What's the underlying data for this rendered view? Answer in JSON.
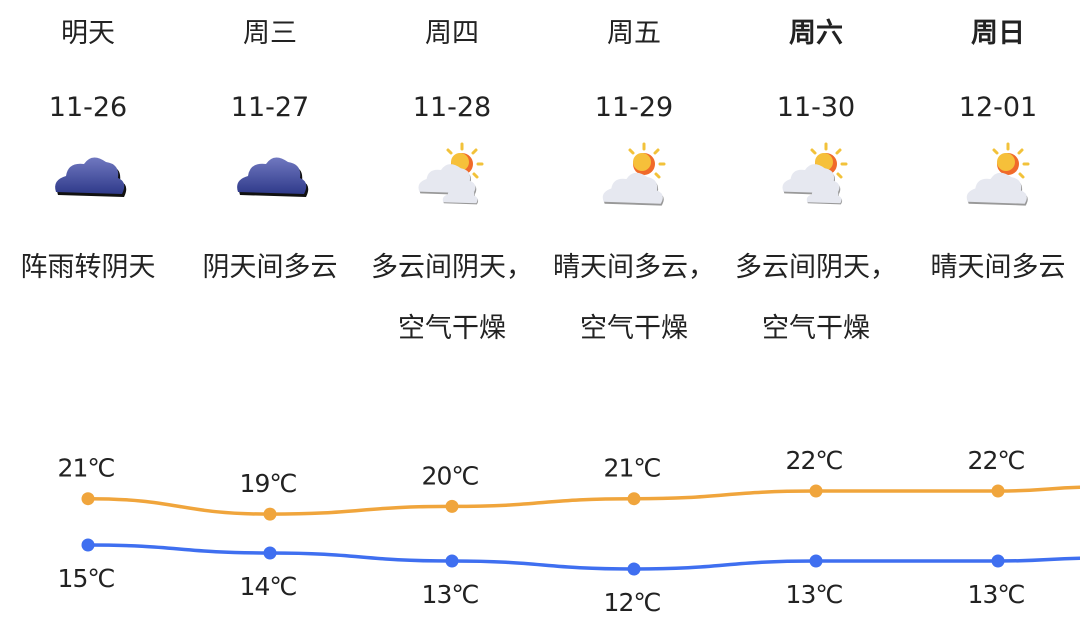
{
  "days": [
    {
      "day": "明天",
      "date": "11-26",
      "icon": "overcast-cloud-icon",
      "desc": "阵雨转阴天",
      "bold": false
    },
    {
      "day": "周三",
      "date": "11-27",
      "icon": "overcast-cloud-icon",
      "desc": "阴天间多云",
      "bold": false
    },
    {
      "day": "周四",
      "date": "11-28",
      "icon": "partly-cloudy-icon",
      "desc": "多云间阴天，空气干燥",
      "bold": false
    },
    {
      "day": "周五",
      "date": "11-29",
      "icon": "sunny-cloud-icon",
      "desc": "晴天间多云，空气干燥",
      "bold": false
    },
    {
      "day": "周六",
      "date": "11-30",
      "icon": "partly-cloudy-icon",
      "desc": "多云间阴天，空气干燥",
      "bold": true
    },
    {
      "day": "周日",
      "date": "12-01",
      "icon": "sunny-cloud-icon",
      "desc": "晴天间多云",
      "bold": true
    }
  ],
  "chart_data": {
    "type": "line",
    "categories": [
      "11-26",
      "11-27",
      "11-28",
      "11-29",
      "11-30",
      "12-01"
    ],
    "unit": "℃",
    "series": [
      {
        "key": "high",
        "values": [
          21,
          19,
          20,
          21,
          22,
          22
        ],
        "color": "#F0A53C"
      },
      {
        "key": "low",
        "values": [
          15,
          14,
          13,
          12,
          13,
          13
        ],
        "color": "#3F6FF0"
      }
    ],
    "labels": {
      "high": [
        "21℃",
        "19℃",
        "20℃",
        "21℃",
        "22℃",
        "22℃"
      ],
      "low": [
        "15℃",
        "14℃",
        "13℃",
        "12℃",
        "13℃",
        "13℃"
      ]
    }
  }
}
